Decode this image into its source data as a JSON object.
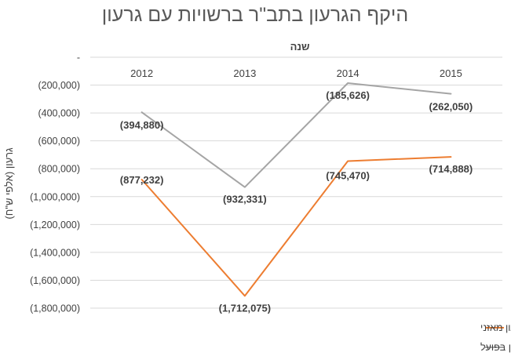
{
  "chart_data": {
    "type": "line",
    "title": "היקף הגרעון בתב\"ר ברשויות עם גרעון",
    "xlabel": "שנה",
    "ylabel": "גרעון (אלפי ש\"ח)",
    "categories": [
      "2012",
      "2013",
      "2014",
      "2015"
    ],
    "ylim": [
      -1800000,
      0
    ],
    "yticks": [
      0,
      -200000,
      -400000,
      -600000,
      -800000,
      -1000000,
      -1200000,
      -1400000,
      -1600000,
      -1800000
    ],
    "ytick_labels": [
      "-",
      "(200,000)",
      "(400,000)",
      "(600,000)",
      "(800,000)",
      "(1,000,000)",
      "(1,200,000)",
      "(1,400,000)",
      "(1,600,000)",
      "(1,800,000)"
    ],
    "grid": true,
    "legend_position": "bottom-right",
    "series": [
      {
        "name": "סה\"כ גרעון תב\"ר בשנת הדו\"ח לרשויות בעלות גרעון מאזני",
        "color": "#ed7d31",
        "values": [
          -877232,
          -1712075,
          -745470,
          -714888
        ],
        "labels": [
          "(877,232)",
          "(1,712,075)",
          "(745,470)",
          "(714,888)"
        ]
      },
      {
        "name": "סה\"כ גרעון תב\"ר בשנת הדו\"ח לרשויות בעלות גרעון בפועל",
        "color": "#a5a5a5",
        "values": [
          -394880,
          -932331,
          -185626,
          -262050
        ],
        "labels": [
          "(394,880)",
          "(932,331)",
          "(185,626)",
          "(262,050)"
        ]
      }
    ]
  }
}
